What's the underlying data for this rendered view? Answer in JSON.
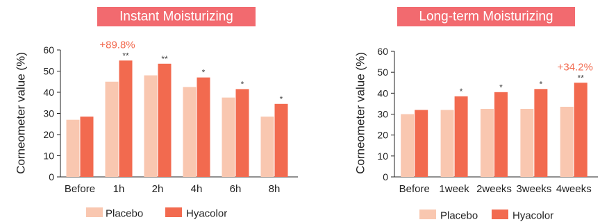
{
  "colors": {
    "placebo": "#F9C7B0",
    "hyacolor": "#F26A4F",
    "title_bg": "#F26A6F",
    "annotation": "#F26A4F",
    "axis": "#222222"
  },
  "chart_data": [
    {
      "type": "bar",
      "title": "Instant Moisturizing",
      "xlabel": "",
      "ylabel": "Corneometer value (%)",
      "ylim": [
        0,
        60
      ],
      "yticks": [
        0,
        10,
        20,
        30,
        40,
        50,
        60
      ],
      "categories": [
        "Before",
        "1h",
        "2h",
        "4h",
        "6h",
        "8h"
      ],
      "series": [
        {
          "name": "Placebo",
          "values": [
            27,
            45,
            48,
            42.5,
            37.5,
            28.5
          ]
        },
        {
          "name": "Hyacolor",
          "values": [
            28.5,
            55,
            53.5,
            47,
            41.5,
            34.5
          ]
        }
      ],
      "significance": [
        "",
        "**",
        "**",
        "*",
        "*",
        "*"
      ],
      "annotation": {
        "text": "+89.8%",
        "category": "1h"
      },
      "legend": "bottom",
      "grid": false
    },
    {
      "type": "bar",
      "title": "Long-term Moisturizing",
      "xlabel": "",
      "ylabel": "Corneometer value (%)",
      "ylim": [
        0,
        60
      ],
      "yticks": [
        0,
        10,
        20,
        30,
        40,
        50,
        60
      ],
      "categories": [
        "Before",
        "1week",
        "2weeks",
        "3weeks",
        "4weeks"
      ],
      "series": [
        {
          "name": "Placebo",
          "values": [
            30,
            32,
            32.5,
            32.5,
            33.5
          ]
        },
        {
          "name": "Hyacolor",
          "values": [
            32,
            38.5,
            40.5,
            42,
            45
          ]
        }
      ],
      "significance": [
        "",
        "*",
        "*",
        "*",
        "**"
      ],
      "annotation": {
        "text": "+34.2%",
        "category": "4weeks"
      },
      "legend": "bottom",
      "grid": false
    }
  ]
}
